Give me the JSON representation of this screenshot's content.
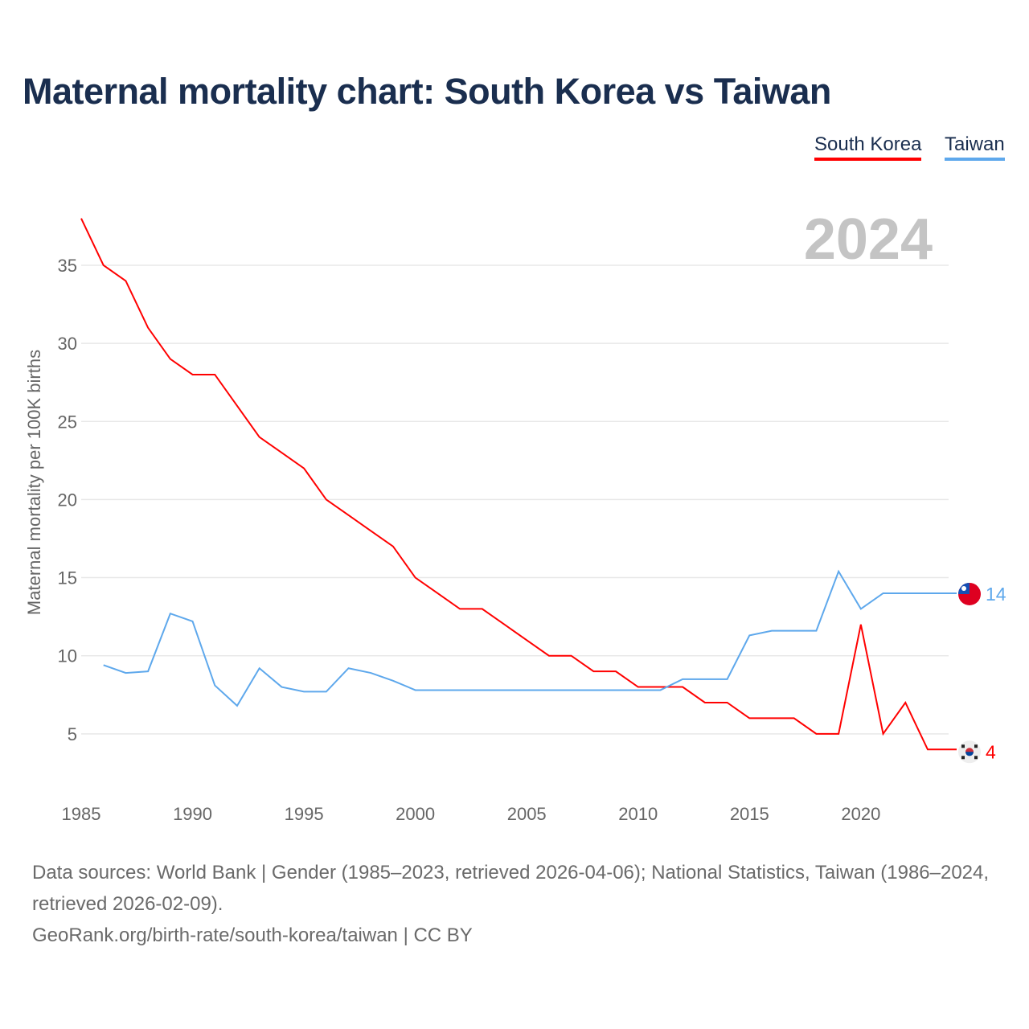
{
  "title": "Maternal mortality chart: South Korea vs Taiwan",
  "footer": {
    "line1": "Data sources: World Bank | Gender (1985–2023, retrieved 2026-04-06); National Statistics, Taiwan (1986–2024, retrieved 2026-02-09).",
    "line2": "GeoRank.org/birth-rate/south-korea/taiwan | CC BY"
  },
  "chart_data": {
    "type": "line",
    "title": "Maternal mortality chart: South Korea vs Taiwan",
    "ylabel": "Maternal mortality per 100K births",
    "xlabel": "",
    "xlim": [
      1985,
      2024
    ],
    "ylim": [
      0,
      39
    ],
    "xticks": [
      1985,
      1990,
      1995,
      2000,
      2005,
      2010,
      2015,
      2020
    ],
    "yticks": [
      5,
      10,
      15,
      20,
      25,
      30,
      35
    ],
    "year_label": "2024",
    "legend_position": "top-right",
    "series": [
      {
        "name": "South Korea",
        "color": "#ff0000",
        "end_label": "4",
        "x": [
          1985,
          1986,
          1987,
          1988,
          1989,
          1990,
          1991,
          1992,
          1993,
          1994,
          1995,
          1996,
          1997,
          1998,
          1999,
          2000,
          2001,
          2002,
          2003,
          2004,
          2005,
          2006,
          2007,
          2008,
          2009,
          2010,
          2011,
          2012,
          2013,
          2014,
          2015,
          2016,
          2017,
          2018,
          2019,
          2020,
          2021,
          2022,
          2023
        ],
        "values": [
          38,
          35,
          34,
          31,
          29,
          28,
          28,
          26,
          24,
          23,
          22,
          20,
          19,
          18,
          17,
          15,
          14,
          13,
          13,
          12,
          11,
          10,
          10,
          9,
          9,
          8,
          8,
          8,
          7,
          7,
          6,
          6,
          6,
          5,
          5,
          12,
          5,
          7,
          4
        ]
      },
      {
        "name": "Taiwan",
        "color": "#5ea8ec",
        "end_label": "14",
        "x": [
          1986,
          1987,
          1988,
          1989,
          1990,
          1991,
          1992,
          1993,
          1994,
          1995,
          1996,
          1997,
          1998,
          1999,
          2000,
          2001,
          2002,
          2003,
          2004,
          2005,
          2006,
          2007,
          2008,
          2009,
          2010,
          2011,
          2012,
          2013,
          2014,
          2015,
          2016,
          2017,
          2018,
          2019,
          2020,
          2021,
          2022,
          2023,
          2024
        ],
        "values": [
          9.4,
          8.9,
          9.0,
          12.7,
          12.2,
          8.1,
          6.8,
          9.2,
          8.0,
          7.7,
          7.7,
          9.2,
          8.9,
          8.4,
          7.8,
          7.8,
          7.8,
          7.8,
          7.8,
          7.8,
          7.8,
          7.8,
          7.8,
          7.8,
          7.8,
          7.8,
          8.5,
          8.5,
          8.5,
          11.3,
          11.6,
          11.6,
          11.6,
          15.4,
          13.0,
          14.0,
          14.0,
          14.0,
          14.0
        ]
      }
    ]
  }
}
